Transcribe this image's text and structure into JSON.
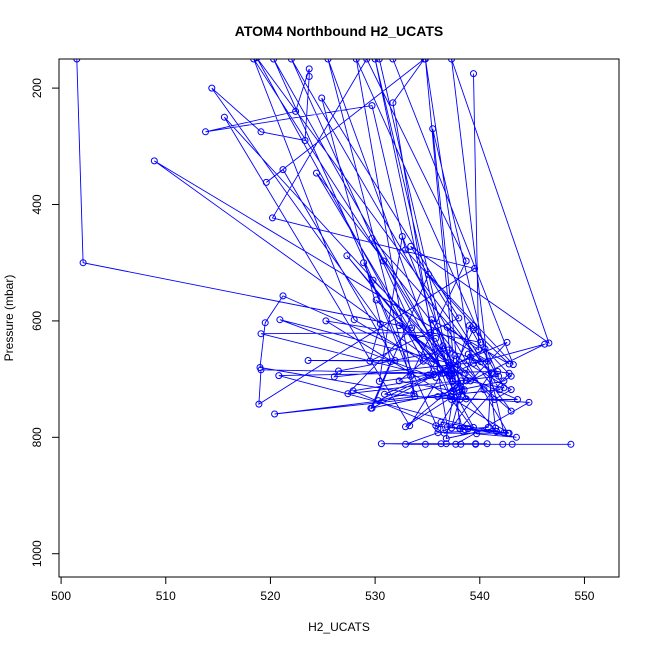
{
  "chart_data": {
    "type": "scatter",
    "title": "ATOM4 Northbound H2_UCATS",
    "xlabel": "H2_UCATS",
    "ylabel": "Pressure (mbar)",
    "xlim": [
      499.8,
      553.3
    ],
    "ylim": [
      1040,
      150
    ],
    "y_reversed": true,
    "x_ticks": [
      500,
      510,
      520,
      530,
      540,
      550
    ],
    "y_ticks": [
      200,
      400,
      600,
      800,
      1000
    ],
    "grid": false,
    "legend": "none",
    "series_color": "#0000ff",
    "series": [
      {
        "points": [
          [
            501.5,
            150
          ],
          [
            502.1,
            500
          ],
          [
            533.5,
            612
          ],
          [
            527.4,
            725
          ],
          [
            541.8,
            695
          ],
          [
            528.2,
            150
          ],
          [
            533.8,
            730
          ],
          [
            520.4,
            760
          ],
          [
            541.9,
            718
          ],
          [
            533.4,
            472
          ],
          [
            546.6,
            638
          ],
          [
            537.3,
            150
          ],
          [
            541.5,
            784
          ],
          [
            536.8,
            802
          ],
          [
            537.6,
            712
          ],
          [
            527.3,
            488
          ],
          [
            541.6,
            790
          ],
          [
            538.1,
            785
          ],
          [
            542.3,
            792
          ],
          [
            535.5,
            270
          ],
          [
            538.1,
            722
          ],
          [
            532.9,
            782
          ],
          [
            538.2,
            703
          ],
          [
            530.3,
            737
          ],
          [
            535.6,
            692
          ],
          [
            522.0,
            150
          ],
          [
            542.7,
            793
          ],
          [
            536.6,
            793
          ],
          [
            536.3,
            774
          ],
          [
            542.8,
            793
          ],
          [
            525.3,
            600
          ],
          [
            535.8,
            630
          ],
          [
            537.3,
            692
          ],
          [
            530.4,
            150
          ],
          [
            531.7,
            150
          ],
          [
            543.2,
            675
          ],
          [
            535.1,
            520
          ],
          [
            529.7,
            750
          ],
          [
            540.5,
            648
          ],
          [
            543.0,
            695
          ],
          [
            542.3,
            703
          ],
          [
            529.6,
            750
          ],
          [
            531.5,
            670
          ],
          [
            524.9,
            217
          ],
          [
            538.0,
            595
          ],
          [
            529.5,
            669
          ],
          [
            530.5,
            605
          ],
          [
            514.4,
            200
          ],
          [
            519.1,
            275
          ],
          [
            523.3,
            290
          ],
          [
            523.7,
            180
          ],
          [
            523.7,
            167
          ],
          [
            522.4,
            240
          ],
          [
            513.8,
            275
          ],
          [
            529.7,
            230
          ],
          [
            532.9,
            478
          ],
          [
            539.4,
            608
          ],
          [
            540.1,
            637
          ],
          [
            535.3,
            620
          ],
          [
            519.1,
            622
          ],
          [
            535.8,
            697
          ],
          [
            527.9,
            720
          ],
          [
            535.8,
            780
          ],
          [
            538.6,
            787
          ],
          [
            541.6,
            790
          ],
          [
            536.9,
            782
          ],
          [
            531.7,
            225
          ],
          [
            534.7,
            150
          ],
          [
            519.6,
            362
          ],
          [
            521.2,
            340
          ],
          [
            531.9,
            668
          ],
          [
            523.6,
            668
          ],
          [
            534.6,
            669
          ],
          [
            518.7,
            148
          ],
          [
            540.1,
            670
          ],
          [
            537.0,
            650
          ],
          [
            526.5,
            686
          ],
          [
            526.1,
            696
          ],
          [
            540.8,
            669
          ],
          [
            508.9,
            325
          ],
          [
            537.1,
            690
          ],
          [
            537.6,
            660
          ],
          [
            543.0,
            718
          ],
          [
            541.4,
            735
          ],
          [
            540.4,
            718
          ],
          [
            524.4,
            346
          ],
          [
            537.2,
            730
          ],
          [
            525.5,
            150
          ],
          [
            533.7,
            725
          ],
          [
            519.0,
            680
          ],
          [
            519.5,
            603
          ],
          [
            521.2,
            557
          ],
          [
            543.6,
            735
          ],
          [
            537.3,
            735
          ],
          [
            539.7,
            794
          ],
          [
            543.5,
            800
          ],
          [
            538.9,
            785
          ],
          [
            540.8,
            783
          ],
          [
            541.1,
            689
          ],
          [
            537.3,
            784
          ],
          [
            538.3,
            718
          ],
          [
            536.0,
            785
          ],
          [
            528.9,
            500
          ],
          [
            533.4,
            695
          ],
          [
            538.7,
            497
          ],
          [
            529.2,
            150
          ],
          [
            520.2,
            423
          ],
          [
            539.5,
            510
          ],
          [
            518.9,
            743
          ],
          [
            519.1,
            684
          ],
          [
            536.4,
            690
          ],
          [
            530.4,
            704
          ],
          [
            532.6,
            455
          ],
          [
            538.7,
            734
          ],
          [
            520.3,
            150
          ],
          [
            529.8,
            530
          ],
          [
            538.6,
            690
          ],
          [
            532.3,
            608
          ],
          [
            539.1,
            703
          ],
          [
            542.6,
            637
          ],
          [
            530.9,
            726
          ],
          [
            538.1,
            735
          ],
          [
            539.1,
            662
          ],
          [
            534.8,
            150
          ],
          [
            538.1,
            785
          ],
          [
            542.8,
            690
          ],
          [
            541.7,
            687
          ],
          [
            520.8,
            694
          ],
          [
            539.4,
            783
          ],
          [
            529.7,
            458
          ],
          [
            541.2,
            690
          ],
          [
            538.9,
            657
          ],
          [
            543.0,
            755
          ],
          [
            537.9,
            675
          ],
          [
            539.0,
            608
          ],
          [
            542.3,
            715
          ],
          [
            538.7,
            703
          ],
          [
            515.6,
            250
          ],
          [
            533.3,
            780
          ],
          [
            537.0,
            672
          ],
          [
            520.9,
            598
          ],
          [
            535.1,
            693
          ],
          [
            536.5,
            643
          ],
          [
            532.3,
            703
          ],
          [
            537.4,
            720
          ],
          [
            530.0,
            150
          ],
          [
            536.2,
            682
          ],
          [
            536.5,
            690
          ],
          [
            528.0,
            598
          ],
          [
            518.4,
            150
          ],
          [
            530.8,
            497
          ],
          [
            537.5,
            690
          ],
          [
            539.4,
            673
          ],
          [
            546.2,
            640
          ],
          [
            536.0,
            730
          ],
          [
            544.7,
            740
          ],
          [
            537.7,
            812
          ],
          [
            534.8,
            812
          ],
          [
            530.6,
            811
          ],
          [
            536.3,
            811
          ],
          [
            538.2,
            812
          ],
          [
            539.6,
            811
          ],
          [
            540.7,
            811
          ],
          [
            536.8,
            811
          ],
          [
            539.6,
            812
          ],
          [
            543.1,
            812
          ],
          [
            542.2,
            812
          ],
          [
            548.7,
            812
          ],
          [
            532.9,
            812
          ],
          [
            536.0,
            792
          ],
          [
            538.4,
            790
          ],
          [
            537.1,
            694
          ],
          [
            530.1,
            564
          ],
          [
            538.5,
            718
          ],
          [
            535.4,
            598
          ],
          [
            542.8,
            674
          ],
          [
            539.4,
            615
          ],
          [
            537.2,
            692
          ],
          [
            537.3,
            686
          ],
          [
            537.4,
            704
          ],
          [
            536.9,
            611
          ],
          [
            539.9,
            650
          ],
          [
            539.4,
            175
          ]
        ]
      }
    ]
  }
}
